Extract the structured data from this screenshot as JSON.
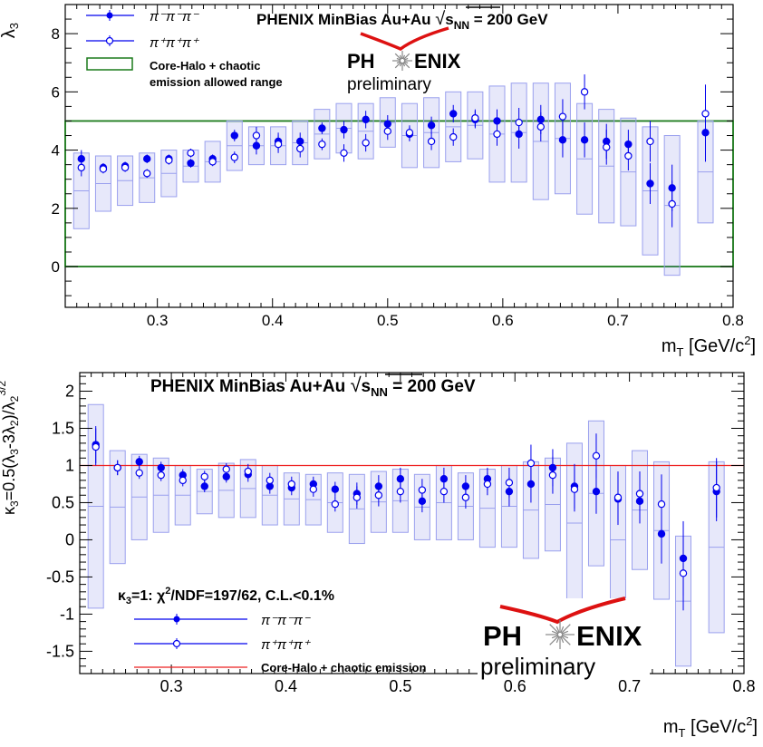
{
  "chart_data": [
    {
      "type": "scatter",
      "title": "PHENIX MinBias Au+Au √sNN = 200 GeV",
      "title_parts": {
        "main": "PHENIX MinBias Au+Au ",
        "sqrt_s": "s",
        "sub": "NN",
        "energy": " = 200 GeV"
      },
      "logo": {
        "left": "PH",
        "right": "ENIX",
        "caption": "preliminary"
      },
      "xlabel": {
        "m": "m",
        "sub": "T",
        "unit": " [GeV/c",
        "sup": "2",
        "close": "]"
      },
      "ylabel": "λ3",
      "xlim": [
        0.22,
        0.8
      ],
      "ylim": [
        -1.4,
        9.0
      ],
      "x_ticks": [
        "0.3",
        "0.4",
        "0.5",
        "0.6",
        "0.7",
        "0.8"
      ],
      "y_ticks": [
        "0",
        "2",
        "4",
        "6",
        "8"
      ],
      "allowed_range": [
        0,
        5
      ],
      "legend": {
        "position": "top-left",
        "minus": "π⁻π⁻π⁻",
        "plus": "π⁺π⁺π⁺",
        "band_line1": "Core-Halo + chaotic",
        "band_line2": "emission allowed range"
      },
      "series": [
        {
          "name": "π⁻π⁻π⁻",
          "marker": "filled-circle",
          "color": "#0000ee",
          "x": [
            0.234,
            0.253,
            0.272,
            0.291,
            0.31,
            0.329,
            0.348,
            0.367,
            0.386,
            0.405,
            0.424,
            0.443,
            0.462,
            0.481,
            0.5,
            0.519,
            0.538,
            0.557,
            0.576,
            0.595,
            0.614,
            0.633,
            0.652,
            0.671,
            0.69,
            0.709,
            0.728,
            0.747,
            0.776
          ],
          "y": [
            3.7,
            3.4,
            3.45,
            3.7,
            3.7,
            3.55,
            3.7,
            4.5,
            4.15,
            4.3,
            4.3,
            4.75,
            4.7,
            5.05,
            4.9,
            4.55,
            4.85,
            5.25,
            5.05,
            5.0,
            4.55,
            5.05,
            4.35,
            4.35,
            4.3,
            4.2,
            2.85,
            2.7,
            4.6
          ],
          "err": [
            0.3,
            0.15,
            0.15,
            0.15,
            0.15,
            0.15,
            0.15,
            0.2,
            0.3,
            0.3,
            0.3,
            0.2,
            0.3,
            0.3,
            0.3,
            0.25,
            0.3,
            0.3,
            0.3,
            0.4,
            0.5,
            0.5,
            0.6,
            0.6,
            0.6,
            0.5,
            0.7,
            0.8,
            1.0
          ],
          "syst_lo": [
            1.3,
            1.9,
            2.1,
            2.2,
            2.4,
            2.9,
            2.9,
            3.3,
            3.5,
            3.5,
            3.5,
            3.7,
            3.9,
            3.7,
            4.1,
            3.4,
            3.4,
            3.6,
            3.7,
            2.9,
            2.9,
            2.3,
            2.5,
            1.8,
            1.5,
            1.4,
            0.4,
            -0.3,
            1.5
          ],
          "syst_hi": [
            3.9,
            3.8,
            3.8,
            3.9,
            4.0,
            4.0,
            4.3,
            5.0,
            4.8,
            4.8,
            5.0,
            5.4,
            5.6,
            5.6,
            5.8,
            5.6,
            5.8,
            6.0,
            6.0,
            6.2,
            6.3,
            6.3,
            6.3,
            5.6,
            5.4,
            5.1,
            4.8,
            4.5,
            5.0
          ]
        },
        {
          "name": "π⁺π⁺π⁺",
          "marker": "open-circle",
          "color": "#0000ee",
          "x": [
            0.234,
            0.253,
            0.272,
            0.291,
            0.31,
            0.329,
            0.348,
            0.367,
            0.386,
            0.405,
            0.424,
            0.443,
            0.462,
            0.481,
            0.5,
            0.519,
            0.538,
            0.557,
            0.576,
            0.595,
            0.614,
            0.633,
            0.652,
            0.671,
            0.69,
            0.709,
            0.728,
            0.747,
            0.776
          ],
          "y": [
            3.4,
            3.35,
            3.4,
            3.2,
            3.65,
            3.9,
            3.6,
            3.75,
            4.5,
            4.2,
            4.05,
            4.2,
            3.9,
            4.25,
            4.65,
            4.6,
            4.3,
            4.45,
            5.1,
            4.55,
            4.95,
            4.8,
            5.15,
            6.0,
            4.1,
            3.8,
            4.3,
            2.15,
            5.25
          ]
        }
      ]
    },
    {
      "type": "scatter",
      "title": "PHENIX MinBias Au+Au √sNN = 200 GeV",
      "title_parts": {
        "main": "PHENIX MinBias Au+Au ",
        "sqrt_s": "s",
        "sub": "NN",
        "energy": " = 200 GeV"
      },
      "logo": {
        "left": "PH",
        "right": "ENIX",
        "caption": "preliminary"
      },
      "xlabel": {
        "m": "m",
        "sub": "T",
        "unit": " [GeV/c",
        "sup": "2",
        "close": "]"
      },
      "ylabel": "κ3=0.5(λ3-3λ2)/λ2^3/2",
      "xlim": [
        0.22,
        0.8
      ],
      "ylim": [
        -1.8,
        2.25
      ],
      "x_ticks": [
        "0.3",
        "0.4",
        "0.5",
        "0.6",
        "0.7",
        "0.8"
      ],
      "y_ticks": [
        "-1.5",
        "-1",
        "-0.5",
        "0",
        "0.5",
        "1",
        "1.5",
        "2"
      ],
      "reference_line": {
        "y": 1,
        "color": "#ee2222"
      },
      "annotation": "κ3=1: χ²/NDF=197/62, C.L.<0.1%",
      "legend": {
        "position": "bottom-left",
        "minus": "π⁻π⁻π⁻",
        "plus": "π⁺π⁺π⁺",
        "line": "Core-Halo + chaotic emission"
      },
      "series": [
        {
          "name": "π⁻π⁻π⁻",
          "marker": "filled-circle",
          "color": "#0000ee",
          "x": [
            0.234,
            0.253,
            0.272,
            0.291,
            0.31,
            0.329,
            0.348,
            0.367,
            0.386,
            0.405,
            0.424,
            0.443,
            0.462,
            0.481,
            0.5,
            0.519,
            0.538,
            0.557,
            0.576,
            0.595,
            0.614,
            0.633,
            0.652,
            0.671,
            0.69,
            0.709,
            0.728,
            0.747,
            0.776
          ],
          "y": [
            1.28,
            0.97,
            1.05,
            0.97,
            0.87,
            0.72,
            0.85,
            0.88,
            0.72,
            0.7,
            0.75,
            0.68,
            0.62,
            0.72,
            0.82,
            0.52,
            0.82,
            0.72,
            0.82,
            0.65,
            0.75,
            0.97,
            0.72,
            0.65,
            0.55,
            0.52,
            0.08,
            -0.25,
            0.65
          ],
          "err": [
            0.25,
            0.1,
            0.08,
            0.08,
            0.08,
            0.08,
            0.08,
            0.1,
            0.1,
            0.1,
            0.1,
            0.1,
            0.15,
            0.15,
            0.15,
            0.15,
            0.15,
            0.15,
            0.15,
            0.2,
            0.25,
            0.25,
            0.3,
            0.3,
            0.35,
            0.3,
            0.4,
            0.5,
            0.4
          ],
          "syst_lo": [
            -0.92,
            -0.32,
            0.0,
            0.1,
            0.2,
            0.35,
            0.3,
            0.3,
            0.2,
            0.2,
            0.2,
            0.1,
            -0.05,
            0.1,
            0.1,
            0.0,
            0.0,
            0.0,
            -0.1,
            -0.1,
            -0.25,
            -0.15,
            -0.85,
            -0.35,
            -1.0,
            -0.4,
            -0.8,
            -1.7,
            -1.25
          ],
          "syst_hi": [
            1.82,
            1.2,
            1.15,
            1.1,
            1.0,
            0.95,
            1.03,
            1.08,
            1.0,
            0.9,
            0.88,
            0.9,
            0.88,
            0.92,
            0.95,
            0.88,
            1.0,
            0.9,
            0.95,
            1.0,
            1.05,
            1.1,
            1.3,
            1.6,
            1.0,
            1.2,
            1.05,
            0.05,
            1.05
          ]
        },
        {
          "name": "π⁺π⁺π⁺",
          "marker": "open-circle",
          "color": "#0000ee",
          "x": [
            0.234,
            0.253,
            0.272,
            0.291,
            0.31,
            0.329,
            0.348,
            0.367,
            0.386,
            0.405,
            0.424,
            0.443,
            0.462,
            0.481,
            0.5,
            0.519,
            0.538,
            0.557,
            0.576,
            0.595,
            0.614,
            0.633,
            0.652,
            0.671,
            0.69,
            0.709,
            0.728,
            0.747,
            0.776
          ],
          "y": [
            1.25,
            0.97,
            0.9,
            0.87,
            0.8,
            0.85,
            0.95,
            0.92,
            0.8,
            0.75,
            0.68,
            0.48,
            0.57,
            0.6,
            0.65,
            0.67,
            0.65,
            0.57,
            0.75,
            0.77,
            1.03,
            0.87,
            0.68,
            1.13,
            0.57,
            0.62,
            0.48,
            -0.45,
            0.7
          ]
        }
      ]
    }
  ]
}
